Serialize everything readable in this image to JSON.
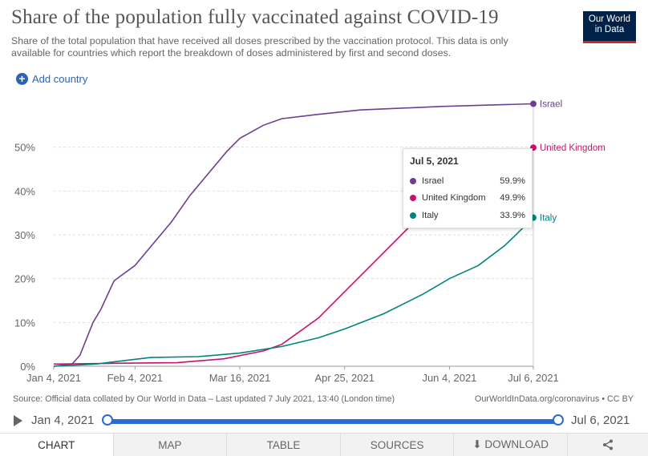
{
  "header": {
    "title": "Share of the population fully vaccinated against COVID-19",
    "subtitle": "Share of the total population that have received all doses prescribed by the vaccination protocol. This data is only available for countries which report the breakdown of doses administered by first and second doses.",
    "logo_line1": "Our World",
    "logo_line2": "in Data"
  },
  "controls": {
    "add_country": "Add country"
  },
  "tooltip": {
    "date": "Jul 5, 2021",
    "rows": [
      {
        "name": "Israel",
        "value": "59.9%",
        "color": "#6d3e91"
      },
      {
        "name": "United Kingdom",
        "value": "49.9%",
        "color": "#c6146e"
      },
      {
        "name": "Italy",
        "value": "33.9%",
        "color": "#00847e"
      }
    ]
  },
  "chart_data": {
    "type": "line",
    "title": "Share of the population fully vaccinated against COVID-19",
    "x_type": "date",
    "xlim": [
      "2021-01-04",
      "2021-07-06"
    ],
    "ylim": [
      0,
      60
    ],
    "y_ticks": [
      0,
      10,
      20,
      30,
      40,
      50
    ],
    "y_tick_labels": [
      "0%",
      "10%",
      "20%",
      "30%",
      "40%",
      "50%"
    ],
    "x_ticks": [
      "2021-01-04",
      "2021-02-04",
      "2021-03-16",
      "2021-04-25",
      "2021-06-04",
      "2021-07-06"
    ],
    "x_tick_labels": [
      "Jan 4, 2021",
      "Feb 4, 2021",
      "Mar 16, 2021",
      "Apr 25, 2021",
      "Jun 4, 2021",
      "Jul 6, 2021"
    ],
    "grid": "horizontal-dashed",
    "series": [
      {
        "name": "Israel",
        "color": "#6d3e91",
        "points": [
          [
            "2021-01-04",
            0
          ],
          [
            "2021-01-11",
            0.5
          ],
          [
            "2021-01-14",
            2.5
          ],
          [
            "2021-01-19",
            10
          ],
          [
            "2021-01-22",
            13
          ],
          [
            "2021-01-27",
            19.5
          ],
          [
            "2021-02-04",
            23
          ],
          [
            "2021-02-11",
            28
          ],
          [
            "2021-02-18",
            33
          ],
          [
            "2021-02-25",
            39
          ],
          [
            "2021-03-04",
            44
          ],
          [
            "2021-03-11",
            49
          ],
          [
            "2021-03-16",
            52
          ],
          [
            "2021-03-25",
            55
          ],
          [
            "2021-04-01",
            56.5
          ],
          [
            "2021-04-15",
            57.5
          ],
          [
            "2021-05-01",
            58.5
          ],
          [
            "2021-06-01",
            59.3
          ],
          [
            "2021-07-06",
            59.9
          ]
        ]
      },
      {
        "name": "United Kingdom",
        "color": "#c6146e",
        "points": [
          [
            "2021-01-04",
            0.5
          ],
          [
            "2021-01-30",
            0.7
          ],
          [
            "2021-02-20",
            0.8
          ],
          [
            "2021-03-10",
            1.7
          ],
          [
            "2021-03-25",
            3.5
          ],
          [
            "2021-04-01",
            5
          ],
          [
            "2021-04-08",
            8
          ],
          [
            "2021-04-15",
            11
          ],
          [
            "2021-04-25",
            17
          ],
          [
            "2021-05-05",
            23
          ],
          [
            "2021-05-15",
            29
          ],
          [
            "2021-05-25",
            35
          ],
          [
            "2021-06-04",
            40
          ],
          [
            "2021-06-15",
            44
          ],
          [
            "2021-06-25",
            47.5
          ],
          [
            "2021-07-06",
            49.9
          ]
        ]
      },
      {
        "name": "Italy",
        "color": "#00847e",
        "points": [
          [
            "2021-01-04",
            0
          ],
          [
            "2021-01-20",
            0.5
          ],
          [
            "2021-01-31",
            1.3
          ],
          [
            "2021-02-10",
            2
          ],
          [
            "2021-02-28",
            2.2
          ],
          [
            "2021-03-16",
            3
          ],
          [
            "2021-04-01",
            4.5
          ],
          [
            "2021-04-15",
            6.5
          ],
          [
            "2021-04-25",
            8.5
          ],
          [
            "2021-05-10",
            12
          ],
          [
            "2021-05-25",
            16.5
          ],
          [
            "2021-06-04",
            20
          ],
          [
            "2021-06-15",
            23
          ],
          [
            "2021-06-25",
            27.5
          ],
          [
            "2021-07-06",
            33.9
          ]
        ]
      }
    ]
  },
  "footer": {
    "source": "Source: Official data collated by Our World in Data – Last updated 7 July 2021, 13:40 (London time)",
    "license": "OurWorldInData.org/coronavirus • CC BY"
  },
  "timeline": {
    "start": "Jan 4, 2021",
    "end": "Jul 6, 2021"
  },
  "tabs": [
    "CHART",
    "MAP",
    "TABLE",
    "SOURCES",
    "⬇ DOWNLOAD"
  ],
  "icons": {
    "add": "plus-circle-icon",
    "play": "play-icon",
    "share": "share-icon"
  }
}
